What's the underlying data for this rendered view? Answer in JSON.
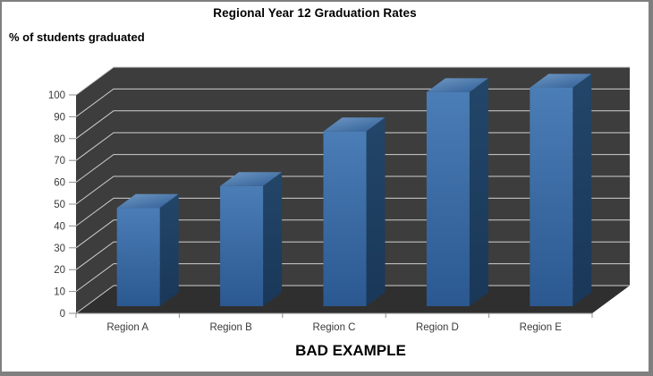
{
  "chart_data": {
    "type": "bar",
    "style": "3d-column",
    "title": "Regional Year 12 Graduation Rates",
    "ylabel": "% of students graduated",
    "xlabel": "",
    "annotation": "BAD EXAMPLE",
    "categories": [
      "Region A",
      "Region B",
      "Region C",
      "Region D",
      "Region E"
    ],
    "values": [
      45,
      55,
      80,
      98,
      100
    ],
    "ylim": [
      0,
      100
    ],
    "y_ticks": [
      0,
      10,
      20,
      30,
      40,
      50,
      60,
      70,
      80,
      90,
      100
    ],
    "grid": true,
    "legend": false,
    "colors": {
      "wall": "#3d3d3d",
      "floor": "#2f2f2f",
      "gridline": "#cfcfcf",
      "axis_line": "#8c8c8c",
      "axis_text": "#3a3a3a",
      "bar_front_top": "#4b7db6",
      "bar_front_bottom": "#2b5890",
      "bar_top_light": "#7099c4",
      "bar_top_dark": "#2f5e97",
      "bar_side_top": "#224669",
      "bar_side_bottom": "#1a3758"
    },
    "frame_border_color": "#7f7f7f",
    "background": "#ffffff"
  }
}
